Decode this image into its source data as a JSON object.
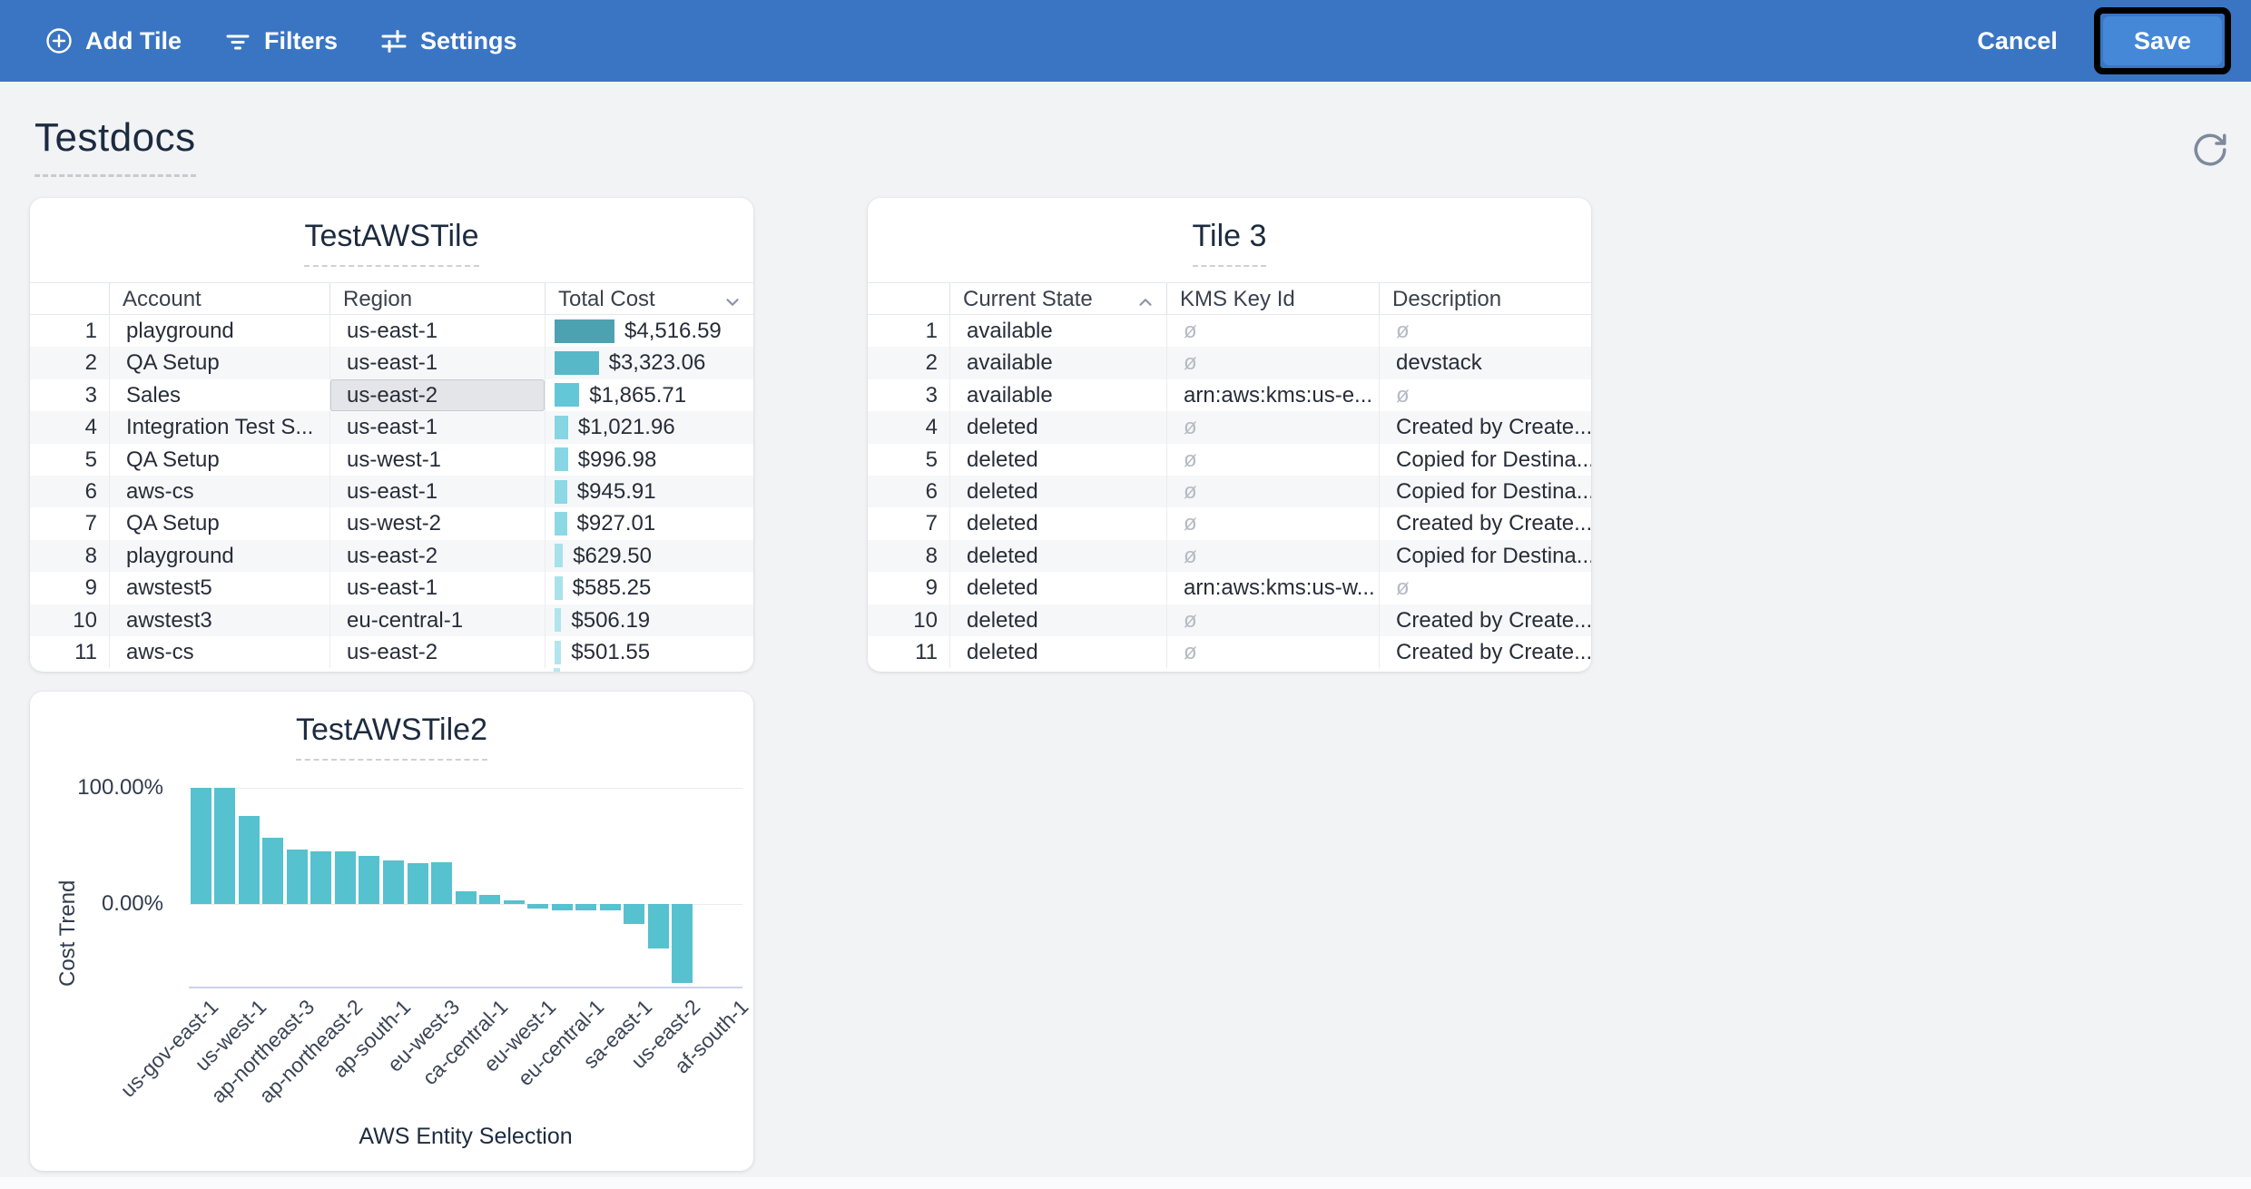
{
  "toolbar": {
    "bg_color": "#3a75c3",
    "items": [
      {
        "label": "Add Tile",
        "icon": "plus-circle-icon"
      },
      {
        "label": "Filters",
        "icon": "filter-lines-icon"
      },
      {
        "label": "Settings",
        "icon": "sliders-icon"
      }
    ],
    "cancel_label": "Cancel",
    "save_label": "Save",
    "save_bg": "#4588d8",
    "save_highlight_border": "#000000"
  },
  "page": {
    "title": "Testdocs",
    "background": "#f2f3f5",
    "refresh_icon": "refresh-icon"
  },
  "tiles": {
    "aws_tile": {
      "title": "TestAWSTile",
      "columns": [
        "Account",
        "Region",
        "Total Cost"
      ],
      "sort": {
        "column": "Total Cost",
        "direction": "desc",
        "icon": "chevron-down-icon"
      },
      "selected_cell": {
        "row": 3,
        "column": "Region"
      },
      "rows": [
        {
          "num": 1,
          "account": "playground",
          "region": "us-east-1",
          "total_cost": "$4,516.59",
          "cost_value": 4516.59,
          "bar_color": "#4da2b1"
        },
        {
          "num": 2,
          "account": "QA Setup",
          "region": "us-east-1",
          "total_cost": "$3,323.06",
          "cost_value": 3323.06,
          "bar_color": "#57b8c8"
        },
        {
          "num": 3,
          "account": "Sales",
          "region": "us-east-2",
          "total_cost": "$1,865.71",
          "cost_value": 1865.71,
          "bar_color": "#63c7d8"
        },
        {
          "num": 4,
          "account": "Integration Test S...",
          "region": "us-east-1",
          "total_cost": "$1,021.96",
          "cost_value": 1021.96,
          "bar_color": "#85d5e2"
        },
        {
          "num": 5,
          "account": "QA Setup",
          "region": "us-west-1",
          "total_cost": "$996.98",
          "cost_value": 996.98,
          "bar_color": "#88d6e3"
        },
        {
          "num": 6,
          "account": "aws-cs",
          "region": "us-east-1",
          "total_cost": "$945.91",
          "cost_value": 945.91,
          "bar_color": "#8cd8e5"
        },
        {
          "num": 7,
          "account": "QA Setup",
          "region": "us-west-2",
          "total_cost": "$927.01",
          "cost_value": 927.01,
          "bar_color": "#8dd8e5"
        },
        {
          "num": 8,
          "account": "playground",
          "region": "us-east-2",
          "total_cost": "$629.50",
          "cost_value": 629.5,
          "bar_color": "#a7e1ea"
        },
        {
          "num": 9,
          "account": "awstest5",
          "region": "us-east-1",
          "total_cost": "$585.25",
          "cost_value": 585.25,
          "bar_color": "#a9e2eb"
        },
        {
          "num": 10,
          "account": "awstest3",
          "region": "eu-central-1",
          "total_cost": "$506.19",
          "cost_value": 506.19,
          "bar_color": "#b1e5ee"
        },
        {
          "num": 11,
          "account": "aws-cs",
          "region": "us-east-2",
          "total_cost": "$501.55",
          "cost_value": 501.55,
          "bar_color": "#b2e5ee"
        }
      ],
      "partial_row_visible": true
    },
    "tile3": {
      "title": "Tile 3",
      "columns": [
        "Current State",
        "KMS Key Id",
        "Description"
      ],
      "sort": {
        "column": "Current State",
        "direction": "asc",
        "icon": "chevron-up-icon"
      },
      "null_marker": "ø",
      "rows": [
        {
          "num": 1,
          "current_state": "available",
          "kms_key_id": "ø",
          "description": "ø"
        },
        {
          "num": 2,
          "current_state": "available",
          "kms_key_id": "ø",
          "description": "devstack"
        },
        {
          "num": 3,
          "current_state": "available",
          "kms_key_id": "arn:aws:kms:us-e...",
          "description": "ø"
        },
        {
          "num": 4,
          "current_state": "deleted",
          "kms_key_id": "ø",
          "description": "Created by Create..."
        },
        {
          "num": 5,
          "current_state": "deleted",
          "kms_key_id": "ø",
          "description": "Copied for Destina..."
        },
        {
          "num": 6,
          "current_state": "deleted",
          "kms_key_id": "ø",
          "description": "Copied for Destina..."
        },
        {
          "num": 7,
          "current_state": "deleted",
          "kms_key_id": "ø",
          "description": "Created by Create..."
        },
        {
          "num": 8,
          "current_state": "deleted",
          "kms_key_id": "ø",
          "description": "Copied for Destina..."
        },
        {
          "num": 9,
          "current_state": "deleted",
          "kms_key_id": "arn:aws:kms:us-w...",
          "description": "ø"
        },
        {
          "num": 10,
          "current_state": "deleted",
          "kms_key_id": "ø",
          "description": "Created by Create..."
        },
        {
          "num": 11,
          "current_state": "deleted",
          "kms_key_id": "ø",
          "description": "Created by Create..."
        }
      ]
    }
  },
  "chart_data": {
    "type": "bar",
    "title": "TestAWSTile2",
    "xlabel": "AWS Entity Selection",
    "ylabel": "Cost Trend",
    "y_ticks": [
      "100.00%",
      "0.00%"
    ],
    "ylim": [
      -75,
      100
    ],
    "grid": "horizontal-lines-at-ticks",
    "legend": "none",
    "bar_color": "#56c1cf",
    "x_tick_labels": [
      "us-gov-east-1",
      "us-west-1",
      "ap-northeast-3",
      "ap-northeast-2",
      "ap-south-1",
      "eu-west-3",
      "ca-central-1",
      "eu-west-1",
      "eu-central-1",
      "sa-east-1",
      "us-east-2",
      "af-south-1"
    ],
    "x_label_every_n_slots": 2,
    "values_pct": [
      100,
      100,
      75.5,
      57.4,
      47.0,
      45.0,
      45.5,
      41.3,
      37.7,
      35.1,
      35.7,
      10.6,
      7.5,
      2.8,
      -3.9,
      -5.4,
      -5.2,
      -5.4,
      -17.1,
      -38.2,
      -68.2,
      0,
      0
    ]
  }
}
